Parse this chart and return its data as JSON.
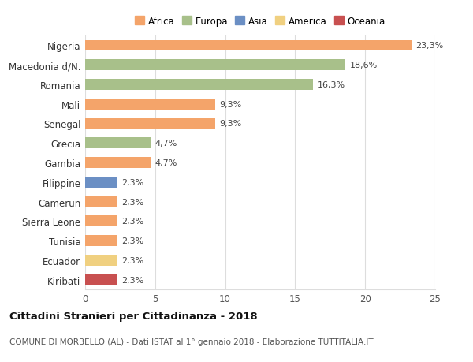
{
  "countries": [
    "Nigeria",
    "Macedonia d/N.",
    "Romania",
    "Mali",
    "Senegal",
    "Grecia",
    "Gambia",
    "Filippine",
    "Camerun",
    "Sierra Leone",
    "Tunisia",
    "Ecuador",
    "Kiribati"
  ],
  "values": [
    23.3,
    18.6,
    16.3,
    9.3,
    9.3,
    4.7,
    4.7,
    2.3,
    2.3,
    2.3,
    2.3,
    2.3,
    2.3
  ],
  "labels": [
    "23,3%",
    "18,6%",
    "16,3%",
    "9,3%",
    "9,3%",
    "4,7%",
    "4,7%",
    "2,3%",
    "2,3%",
    "2,3%",
    "2,3%",
    "2,3%",
    "2,3%"
  ],
  "continents": [
    "Africa",
    "Europa",
    "Europa",
    "Africa",
    "Africa",
    "Europa",
    "Africa",
    "Asia",
    "Africa",
    "Africa",
    "Africa",
    "America",
    "Oceania"
  ],
  "colors": {
    "Africa": "#F4A46A",
    "Europa": "#A8C08A",
    "Asia": "#6B8FC4",
    "America": "#F0D080",
    "Oceania": "#C85050"
  },
  "legend_order": [
    "Africa",
    "Europa",
    "Asia",
    "America",
    "Oceania"
  ],
  "title_bold": "Cittadini Stranieri per Cittadinanza - 2018",
  "subtitle": "COMUNE DI MORBELLO (AL) - Dati ISTAT al 1° gennaio 2018 - Elaborazione TUTTITALIA.IT",
  "xlim": [
    0,
    25
  ],
  "xticks": [
    0,
    5,
    10,
    15,
    20,
    25
  ],
  "background_color": "#ffffff",
  "grid_color": "#dddddd",
  "bar_height": 0.55
}
